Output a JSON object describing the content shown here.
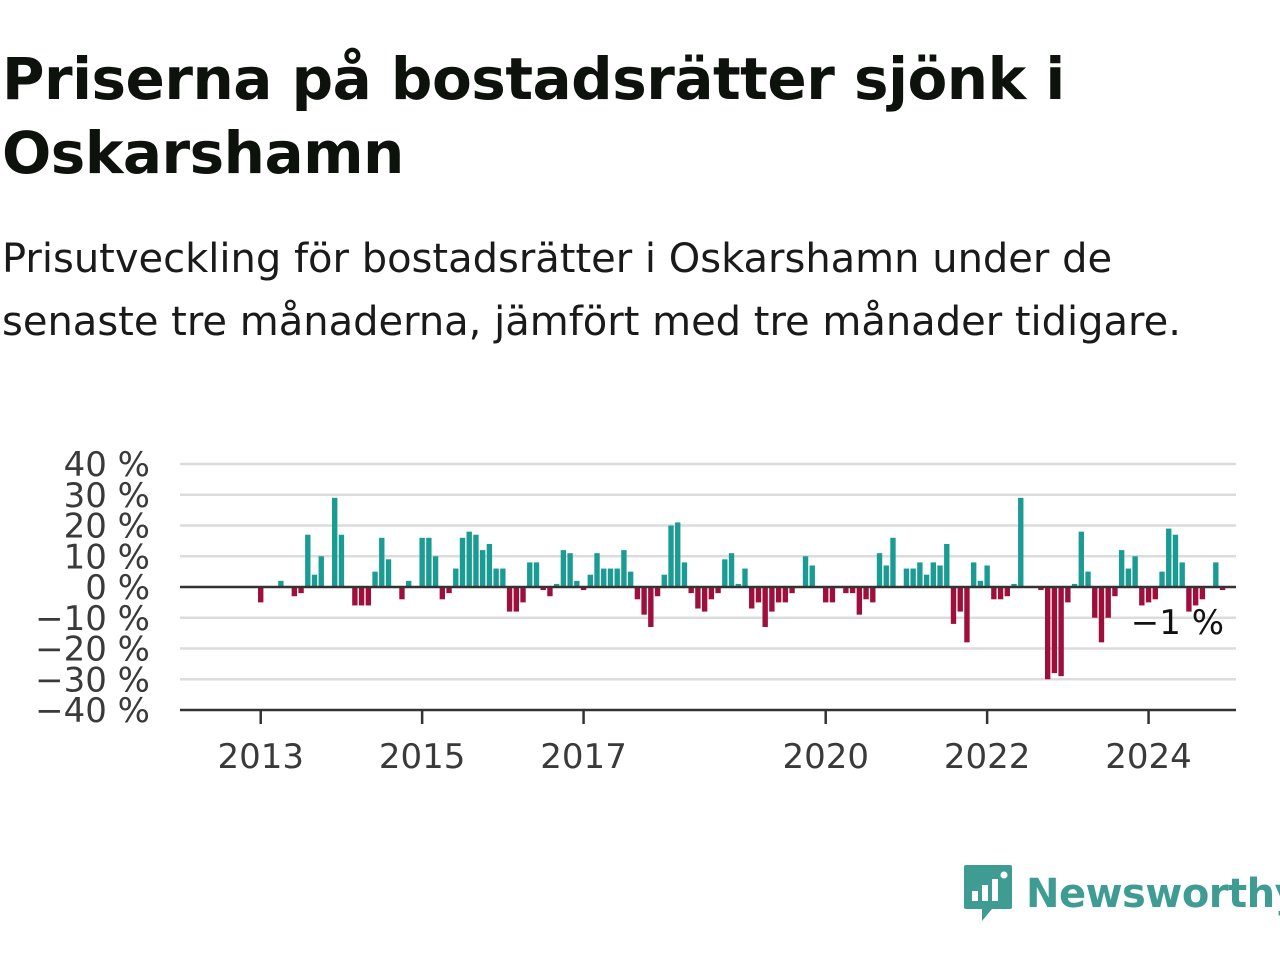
{
  "title": "Priserna på bostadsrätter sjönk i Oskarshamn",
  "subtitle": "Prisutveckling för bostadsrätter i Oskarshamn under de senaste tre månaderna, jämfört med tre månader tidigare.",
  "brand": {
    "name": "Newsworthy",
    "icon": "newsworthy-logo-icon",
    "color": "#3f9c93"
  },
  "chart_data": {
    "type": "bar",
    "x_start": "2012-01",
    "x_step": "month",
    "xlim": [
      "2012-01",
      "2025-02"
    ],
    "ylim": [
      -40,
      40
    ],
    "yticks": [
      40,
      30,
      20,
      10,
      0,
      -10,
      -20,
      -30,
      -40
    ],
    "ytick_labels": [
      "40 %",
      "30 %",
      "20 %",
      "10 %",
      "0 %",
      "−10 %",
      "−20 %",
      "−30 %",
      "−40 %"
    ],
    "xticks": [
      "2013-01",
      "2015-01",
      "2017-01",
      "2020-01",
      "2022-01",
      "2024-01"
    ],
    "xtick_labels": [
      "2013",
      "2015",
      "2017",
      "2020",
      "2022",
      "2024"
    ],
    "positive_color": "#1a9c94",
    "negative_color": "#9e0f3c",
    "grid": true,
    "end_label": "−1 %",
    "values": [
      null,
      null,
      null,
      null,
      null,
      null,
      null,
      null,
      null,
      null,
      null,
      null,
      -5,
      null,
      null,
      2,
      null,
      -3,
      -2,
      17,
      4,
      10,
      null,
      29,
      17,
      null,
      -6,
      -6,
      -6,
      5,
      16,
      9,
      null,
      -4,
      2,
      null,
      16,
      16,
      10,
      -4,
      -2,
      6,
      16,
      18,
      17,
      12,
      14,
      6,
      6,
      -8,
      -8,
      -5,
      8,
      8,
      -1,
      -3,
      1,
      12,
      11,
      2,
      -1,
      4,
      11,
      6,
      6,
      6,
      12,
      5,
      -4,
      -9,
      -13,
      -3,
      4,
      20,
      21,
      8,
      -2,
      -7,
      -8,
      -4,
      -2,
      9,
      11,
      1,
      6,
      -7,
      -5,
      -13,
      -8,
      -5,
      -5,
      -2,
      null,
      10,
      7,
      null,
      -5,
      -5,
      null,
      -2,
      -2,
      -9,
      -4,
      -5,
      11,
      7,
      16,
      null,
      6,
      6,
      8,
      4,
      8,
      7,
      14,
      -12,
      -8,
      -18,
      8,
      2,
      7,
      -4,
      -4,
      -3,
      1,
      29,
      null,
      null,
      -1,
      -30,
      -28,
      -29,
      -5,
      1,
      18,
      5,
      -10,
      -18,
      -10,
      -3,
      12,
      6,
      10,
      -6,
      -5,
      -4,
      5,
      19,
      17,
      8,
      -8,
      -6,
      -4,
      null,
      8,
      -1
    ]
  }
}
